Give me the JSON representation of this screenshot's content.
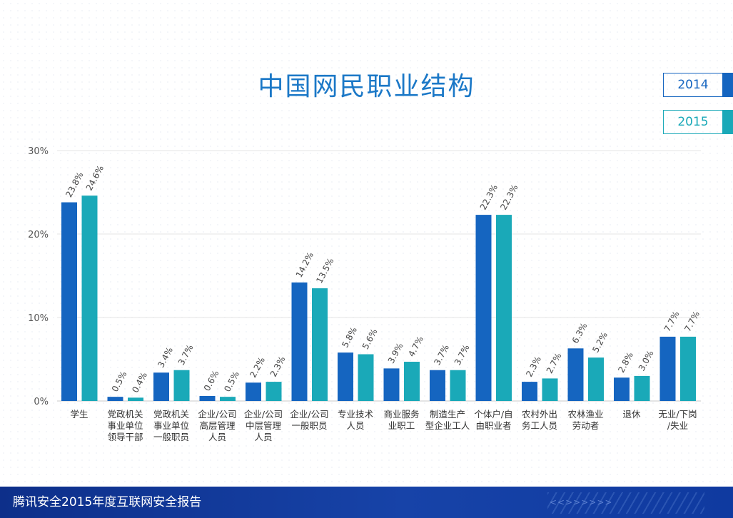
{
  "page": {
    "title": "中国网民职业结构",
    "footer_text": "腾讯安全2015年度互联网安全报告",
    "footer_chevrons": "<<>>>>>>"
  },
  "legend": [
    {
      "label": "2014",
      "color": "#1565c0"
    },
    {
      "label": "2015",
      "color": "#1aa9b8"
    }
  ],
  "chart_data": {
    "type": "bar",
    "title": "中国网民职业结构",
    "xlabel": "",
    "ylabel": "",
    "ylim": [
      0,
      30
    ],
    "yticks": [
      "0%",
      "10%",
      "20%",
      "30%"
    ],
    "ytick_values": [
      0,
      10,
      20,
      30
    ],
    "grid": true,
    "legend_position": "top-right",
    "categories": [
      [
        "学生"
      ],
      [
        "党政机关",
        "事业单位",
        "领导干部"
      ],
      [
        "党政机关",
        "事业单位",
        "一般职员"
      ],
      [
        "企业/公司",
        "高层管理",
        "人员"
      ],
      [
        "企业/公司",
        "中层管理",
        "人员"
      ],
      [
        "企业/公司",
        "一般职员"
      ],
      [
        "专业技术",
        "人员"
      ],
      [
        "商业服务",
        "业职工"
      ],
      [
        "制造生产",
        "型企业工人"
      ],
      [
        "个体户/自",
        "由职业者"
      ],
      [
        "农村外出",
        "务工人员"
      ],
      [
        "农林渔业",
        "劳动者"
      ],
      [
        "退休"
      ],
      [
        "无业/下岗",
        "/失业"
      ]
    ],
    "series": [
      {
        "name": "2014",
        "color": "#1565c0",
        "values": [
          23.8,
          0.5,
          3.4,
          0.6,
          2.2,
          14.2,
          5.8,
          3.9,
          3.7,
          22.3,
          2.3,
          6.3,
          2.8,
          7.7
        ],
        "labels": [
          "23.8%",
          "0.5%",
          "3.4%",
          "0.6%",
          "2.2%",
          "14.2%",
          "5.8%",
          "3.9%",
          "3.7%",
          "22.3%",
          "2.3%",
          "6.3%",
          "2.8%",
          "7.7%"
        ]
      },
      {
        "name": "2015",
        "color": "#1aa9b8",
        "values": [
          24.6,
          0.4,
          3.7,
          0.5,
          2.3,
          13.5,
          5.6,
          4.7,
          3.7,
          22.3,
          2.7,
          5.2,
          3.0,
          7.7
        ],
        "labels": [
          "24.6%",
          "0.4%",
          "3.7%",
          "0.5%",
          "2.3%",
          "13.5%",
          "5.6%",
          "4.7%",
          "3.7%",
          "22.3%",
          "2.7%",
          "5.2%",
          "3.0%",
          "7.7%"
        ]
      }
    ]
  }
}
